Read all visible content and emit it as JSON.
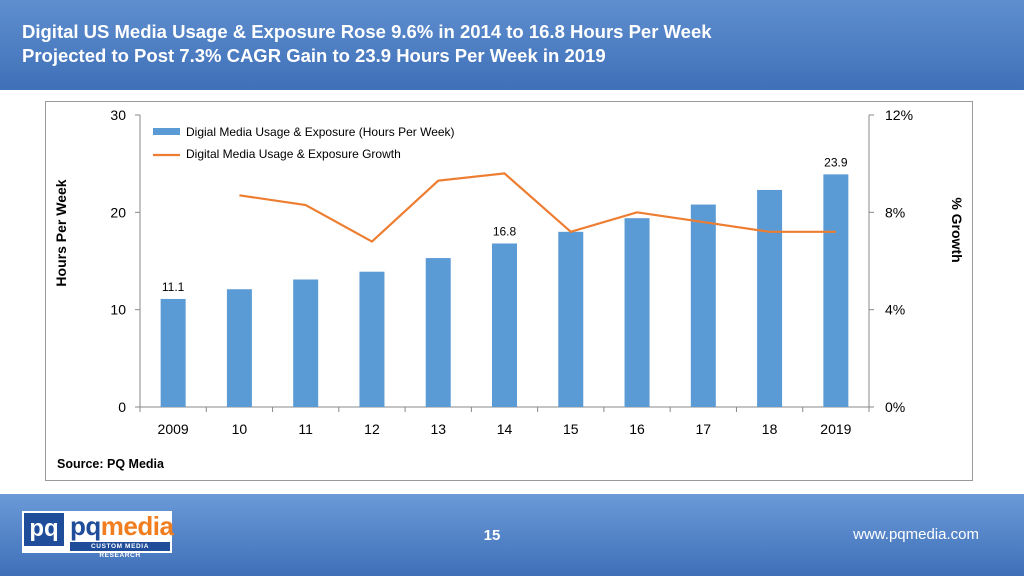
{
  "header": {
    "title_line1": "Digital US Media Usage & Exposure Rose 9.6% in 2014 to 16.8 Hours Per Week",
    "title_line2": "Projected to Post 7.3% CAGR Gain to 23.9 Hours Per Week in 2019"
  },
  "chart_data": {
    "type": "bar",
    "categories": [
      "2009",
      "10",
      "11",
      "12",
      "13",
      "14",
      "15",
      "16",
      "17",
      "18",
      "2019"
    ],
    "series": [
      {
        "name": "Digial Media Usage & Exposure (Hours Per Week)",
        "type": "bar",
        "axis": "left",
        "color": "#5b9bd5",
        "values": [
          11.1,
          12.1,
          13.1,
          13.9,
          15.3,
          16.8,
          18.0,
          19.4,
          20.8,
          22.3,
          23.9
        ]
      },
      {
        "name": "Digital Media Usage & Exposure Growth",
        "type": "line",
        "axis": "right",
        "color": "#ed7d31",
        "values": [
          null,
          8.7,
          8.3,
          6.8,
          9.3,
          9.6,
          7.2,
          8.0,
          7.6,
          7.2,
          7.2
        ]
      }
    ],
    "data_labels": [
      {
        "index": 0,
        "text": "11.1"
      },
      {
        "index": 5,
        "text": "16.8"
      },
      {
        "index": 10,
        "text": "23.9"
      }
    ],
    "ylabel": "Hours Per Week",
    "y2label": "% Growth",
    "ylim": [
      0,
      30
    ],
    "y2lim": [
      0,
      12
    ],
    "yticks": [
      "0",
      "10",
      "20",
      "30"
    ],
    "y2ticks": [
      "0%",
      "4%",
      "8%",
      "12%"
    ],
    "legend_position": "top-left",
    "grid": false,
    "source": "Source: PQ Media"
  },
  "footer": {
    "logo_pq": "pq",
    "logo_name_part1": "pq",
    "logo_name_part2": "media",
    "logo_tagline": "CUSTOM MEDIA RESEARCH",
    "page_number": "15",
    "website": "www.pqmedia.com"
  }
}
